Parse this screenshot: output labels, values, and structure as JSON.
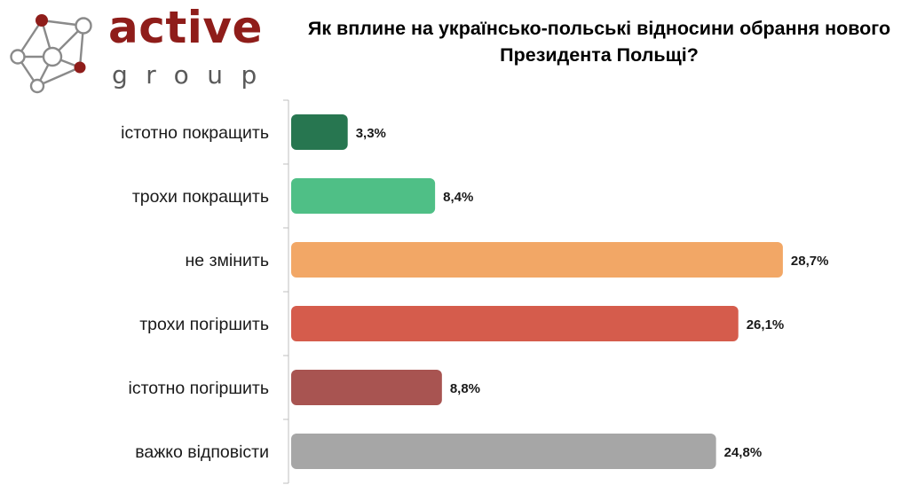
{
  "logo": {
    "word": "active",
    "sub": "group",
    "node_color": "#8f1d1a",
    "line_color": "#8a8a8a"
  },
  "chart_data": {
    "type": "bar",
    "orientation": "horizontal",
    "title": "Як вплине на українсько-польські відносини обрання нового Президента Польщі?",
    "xlabel": "",
    "ylabel": "",
    "xlim": [
      0,
      30
    ],
    "grid": false,
    "legend": "none",
    "categories": [
      "істотно покращить",
      "трохи покращить",
      "не змінить",
      "трохи погіршить",
      "істотно погіршить",
      "важко відповісти"
    ],
    "values": [
      3.3,
      8.4,
      28.7,
      26.1,
      8.8,
      24.8
    ],
    "value_labels": [
      "3,3%",
      "8,4%",
      "28,7%",
      "26,1%",
      "8,8%",
      "24,8%"
    ],
    "colors": [
      "#277650",
      "#4fbf86",
      "#f2a766",
      "#d55c4c",
      "#a85451",
      "#a6a6a6"
    ]
  }
}
